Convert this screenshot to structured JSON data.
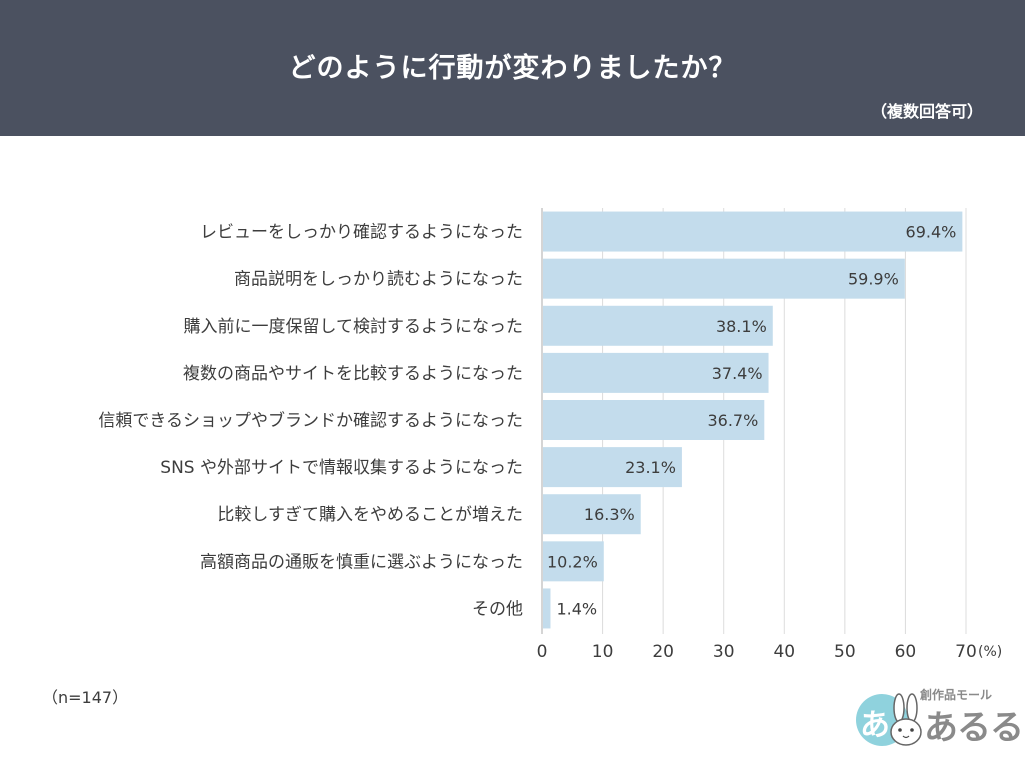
{
  "header": {
    "title": "どのように行動が変わりましたか？",
    "note": "（複数回答可）"
  },
  "footer": {
    "sample": "（n=147）"
  },
  "logo": {
    "tagline": "創作品モール",
    "name": "あるる",
    "badge": "あ",
    "icon": "rabbit-icon"
  },
  "colors": {
    "header_bg": "#4b5160",
    "bar": "#c3dcec",
    "grid": "#dcdcdc"
  },
  "chart_data": {
    "type": "bar",
    "orientation": "horizontal",
    "categories": [
      "レビューをしっかり確認するようになった",
      "商品説明をしっかり読むようになった",
      "購入前に一度保留して検討するようになった",
      "複数の商品やサイトを比較するようになった",
      "信頼できるショップやブランドか確認するようになった",
      "SNS や外部サイトで情報収集するようになった",
      "比較しすぎて購入をやめることが増えた",
      "高額商品の通販を慎重に選ぶようになった",
      "その他"
    ],
    "values": [
      69.4,
      59.9,
      38.1,
      37.4,
      36.7,
      23.1,
      16.3,
      10.2,
      1.4
    ],
    "value_labels": [
      "69.4%",
      "59.9%",
      "38.1%",
      "37.4%",
      "36.7%",
      "23.1%",
      "16.3%",
      "10.2%",
      "1.4%"
    ],
    "xlim": [
      0,
      70
    ],
    "xticks": [
      "0",
      "10",
      "20",
      "30",
      "40",
      "50",
      "60",
      "70"
    ],
    "xunit": "(%)",
    "grid": true
  }
}
